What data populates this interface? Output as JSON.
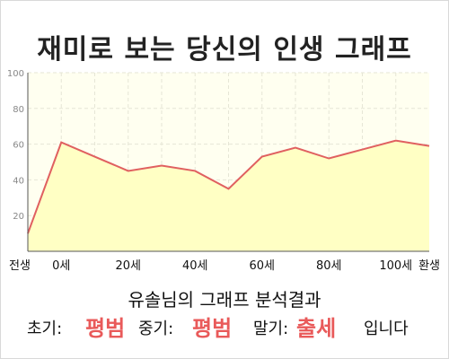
{
  "title": "재미로 보는 당신의 인생 그래프",
  "chart_data": {
    "type": "area",
    "x": [
      "전생",
      "0세",
      "",
      "20세",
      "",
      "40세",
      "",
      "60세",
      "",
      "80세",
      "",
      "100세",
      "환생"
    ],
    "values": [
      10,
      61,
      53,
      45,
      48,
      45,
      35,
      53,
      58,
      52,
      57,
      62,
      59
    ],
    "ylim": [
      0,
      100
    ],
    "yticks": [
      20,
      40,
      60,
      80,
      100
    ],
    "grid": true,
    "colors": {
      "fill": "#ffffc4",
      "line": "#e06060",
      "plot_bg": "#fffff0",
      "grid": "#e6e6d6"
    }
  },
  "summary": {
    "title": "유솔님의 그래프 분석결과",
    "early_label": "초기:",
    "early_value": "평범",
    "mid_label": "중기:",
    "mid_value": "평범",
    "late_label": "말기:",
    "late_value": "출세",
    "suffix": "입니다"
  }
}
